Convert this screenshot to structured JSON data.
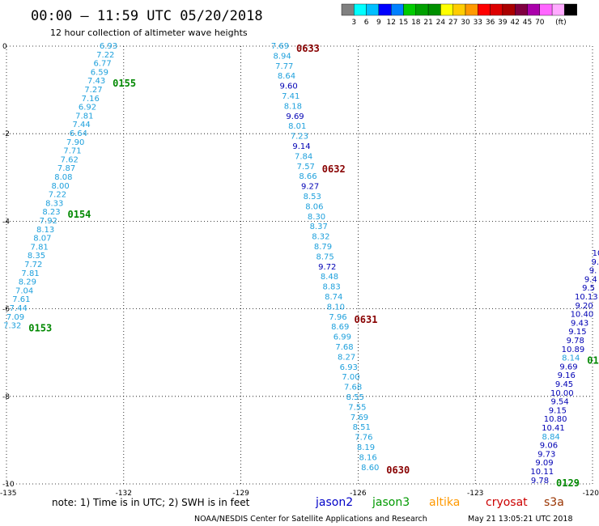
{
  "header": {
    "title": "00:00 – 11:59 UTC 05/20/2018",
    "subtitle": "12 hour collection of altimeter wave heights"
  },
  "legend": {
    "unit": "(ft)",
    "colors": [
      "#808080",
      "#00ffff",
      "#00bfff",
      "#0000ff",
      "#0080ff",
      "#00cc00",
      "#00a000",
      "#009000",
      "#ffff00",
      "#ffcc00",
      "#ff9900",
      "#ff0000",
      "#dd0000",
      "#aa0000",
      "#800040",
      "#aa00aa",
      "#ff66ff",
      "#ffaaff",
      "#000000"
    ],
    "labels": [
      "3",
      "6",
      "9",
      "12",
      "15",
      "18",
      "21",
      "24",
      "27",
      "30",
      "33",
      "36",
      "39",
      "42",
      "45",
      "70"
    ]
  },
  "axes": {
    "lon_ticks": [
      "-135",
      "-132",
      "-129",
      "-126",
      "-123",
      "-120"
    ],
    "time_ticks": [
      "0",
      "-2",
      "-4",
      "-6",
      "-8",
      "-10"
    ],
    "lon_range": [
      -135,
      -120
    ],
    "time_range": [
      0,
      -10
    ]
  },
  "colors": {
    "jason2": "#0000c8",
    "jason3": "#009900",
    "altika": "#ff9900",
    "cryosat": "#cc0000",
    "s3a": "#993300",
    "light_swh": "#1ea0dc",
    "dark_swh": "#0000b4",
    "pass_jason3": "#008800",
    "pass_red": "#880000"
  },
  "footer": {
    "note": "note:  1) Time is in UTC;  2) SWH is in feet",
    "satellites": [
      {
        "name": "jason2",
        "color": "#0000c8"
      },
      {
        "name": "jason3",
        "color": "#009900"
      },
      {
        "name": "altika",
        "color": "#ff9900"
      },
      {
        "name": "cryosat",
        "color": "#cc0000"
      },
      {
        "name": "s3a",
        "color": "#993300"
      }
    ],
    "credit": "NOAA/NESDIS Center for Satellite Applications and Research",
    "timestamp": "May 21 13:05:21 UTC 2018"
  },
  "tracks": [
    {
      "id": "track-a",
      "values": [
        "6.93",
        "7.22",
        "6.77",
        "6.59",
        "7.43",
        "7.27",
        "7.16",
        "6.92",
        "7.81",
        "7.44",
        "6.64",
        "7.90",
        "7.71",
        "7.62",
        "7.87",
        "8.08",
        "8.00",
        "7.22",
        "8.33",
        "8.23",
        "7.92",
        "8.13",
        "8.07",
        "7.81",
        "8.35",
        "7.72",
        "7.81",
        "8.29",
        "7.04",
        "7.61",
        "7.44",
        "7.09",
        "7.32"
      ],
      "passes": [
        {
          "label": "0155",
          "after": 4,
          "color": "#008800"
        },
        {
          "label": "0154",
          "after": 19,
          "color": "#008800"
        },
        {
          "label": "0153",
          "after": 32,
          "color": "#008800"
        }
      ]
    },
    {
      "id": "track-b",
      "values": [
        "7.69",
        "8.94",
        "7.77",
        "8.64",
        "9.60",
        "7.41",
        "8.18",
        "9.69",
        "8.01",
        "7.23",
        "9.14",
        "7.84",
        "7.57",
        "8.66",
        "9.27",
        "8.53",
        "8.06",
        "8.30",
        "8.37",
        "8.32",
        "8.79",
        "8.75",
        "9.72",
        "8.48",
        "8.83",
        "8.74",
        "8.10",
        "7.96",
        "8.69",
        "6.99",
        "7.68",
        "8.27",
        "6.93",
        "7.00",
        "7.68",
        "8.55",
        "7.55",
        "7.69",
        "8.51",
        "7.76",
        "8.19",
        "8.16",
        "8.60"
      ],
      "passes": [
        {
          "label": "0633",
          "after": 0,
          "color": "#880000"
        },
        {
          "label": "0632",
          "after": 12,
          "color": "#880000"
        },
        {
          "label": "0631",
          "after": 27,
          "color": "#880000"
        },
        {
          "label": "0630",
          "after": 42,
          "color": "#880000"
        }
      ]
    },
    {
      "id": "track-c",
      "values": [
        "10",
        "9.",
        "9.",
        "9.4",
        "9.5",
        "10.13",
        "9.20",
        "10.40",
        "9.43",
        "9.15",
        "9.78",
        "10.89",
        "8.14",
        "9.69",
        "9.16",
        "9.45",
        "10.00",
        "9.54",
        "9.15",
        "10.80",
        "10.41",
        "8.84",
        "9.06",
        "9.73",
        "9.09",
        "10.11",
        "9.78"
      ],
      "passes": [
        {
          "label": "01",
          "after": 12,
          "color": "#008800"
        },
        {
          "label": "0129",
          "after": 26,
          "color": "#008800"
        }
      ]
    }
  ]
}
